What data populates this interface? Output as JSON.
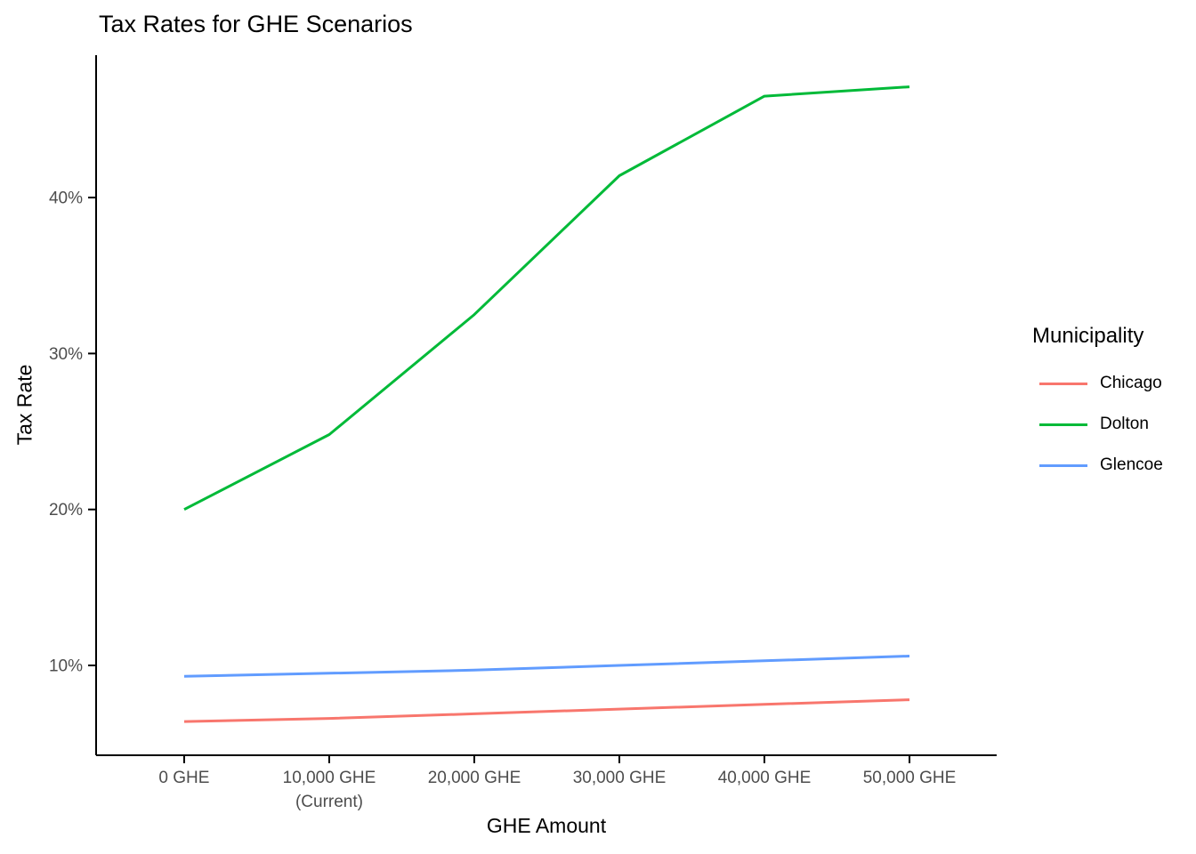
{
  "figure": {
    "background": "#FFFFFF"
  },
  "chart_data": {
    "type": "line",
    "title": "Tax Rates for GHE Scenarios",
    "xlabel": "GHE Amount",
    "ylabel": "Tax Rate",
    "legend_title": "Municipality",
    "legend_position": "right",
    "grid": false,
    "x": [
      0,
      10000,
      20000,
      30000,
      40000,
      50000
    ],
    "x_tick_labels": [
      "0 GHE",
      "10,000 GHE\n(Current)",
      "20,000 GHE",
      "30,000 GHE",
      "40,000 GHE",
      "50,000 GHE"
    ],
    "y_ticks": [
      10,
      20,
      30,
      40
    ],
    "y_tick_labels": [
      "10%",
      "20%",
      "30%",
      "40%"
    ],
    "xlim": [
      -6070,
      56010
    ],
    "ylim": [
      4.24,
      49.13
    ],
    "value_unit": "percent",
    "series": [
      {
        "name": "Chicago",
        "color": "#F8766D",
        "values": [
          6.4,
          6.6,
          6.9,
          7.2,
          7.5,
          7.8
        ]
      },
      {
        "name": "Dolton",
        "color": "#00BA38",
        "values": [
          20.0,
          24.8,
          32.5,
          41.4,
          46.5,
          47.1
        ]
      },
      {
        "name": "Glencoe",
        "color": "#619CFF",
        "values": [
          9.3,
          9.5,
          9.7,
          10.0,
          10.3,
          10.6
        ]
      }
    ],
    "colors": {
      "axis_text": "#4D4D4D",
      "axis_line": "#000000",
      "title_text": "#000000"
    }
  }
}
